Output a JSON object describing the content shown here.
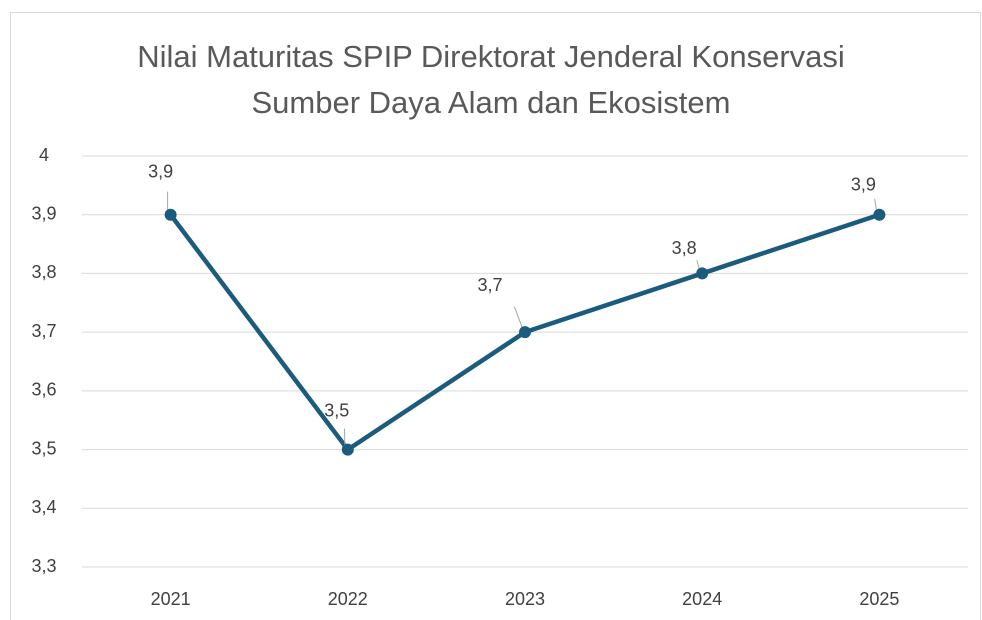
{
  "chart_data": {
    "type": "line",
    "title": "Nilai Maturitas SPIP Direktorat Jenderal Konservasi Sumber Daya Alam dan Ekosistem",
    "categories": [
      "2021",
      "2022",
      "2023",
      "2024",
      "2025"
    ],
    "values": [
      3.9,
      3.5,
      3.7,
      3.8,
      3.9
    ],
    "value_labels": [
      "3,9",
      "3,5",
      "3,7",
      "3,8",
      "3,9"
    ],
    "color": "#1b5b7e",
    "ylim": [
      3.3,
      4
    ],
    "yticks": [
      {
        "value": 3.3,
        "label": "3,3"
      },
      {
        "value": 3.4,
        "label": "3,4"
      },
      {
        "value": 3.5,
        "label": "3,5"
      },
      {
        "value": 3.6,
        "label": "3,6"
      },
      {
        "value": 3.7,
        "label": "3,7"
      },
      {
        "value": 3.8,
        "label": "3,8"
      },
      {
        "value": 3.9,
        "label": "3,9"
      },
      4
    ],
    "grid": true
  }
}
